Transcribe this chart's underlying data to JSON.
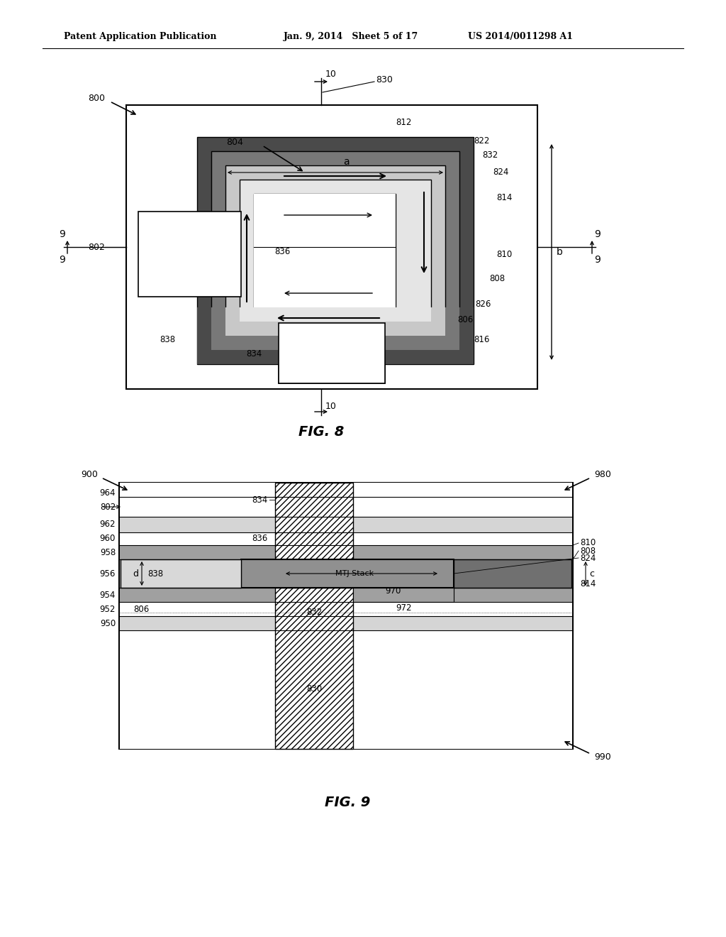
{
  "page_header_left": "Patent Application Publication",
  "page_header_mid": "Jan. 9, 2014   Sheet 5 of 17",
  "page_header_right": "US 2014/0011298 A1",
  "fig8_label": "FIG. 8",
  "fig9_label": "FIG. 9",
  "bg_color": "#ffffff",
  "lc": "#000000",
  "dark_gray": "#4a4a4a",
  "med_dark_gray": "#787878",
  "medium_gray": "#999999",
  "light_gray": "#c8c8c8",
  "very_light_gray": "#e5e5e5",
  "hatch_gray": "#aaaaaa"
}
